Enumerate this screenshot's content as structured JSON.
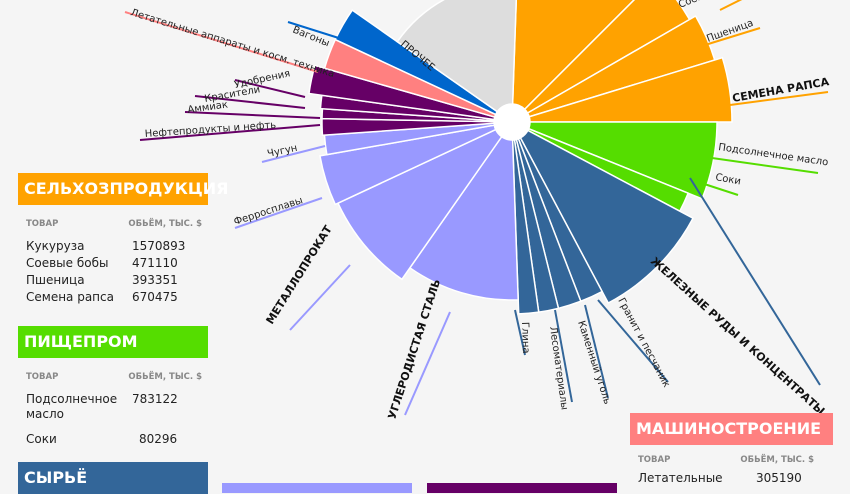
{
  "colors": {
    "agri": "#FFA200",
    "food": "#55DD00",
    "raw": "#336699",
    "metal": "#9999FF",
    "chem": "#660066",
    "machine": "#FF8080",
    "wagon": "#0066CC",
    "other": "#DDDDDD"
  },
  "panels": {
    "agri": {
      "title": "СЕЛЬХОЗПРОДУКЦИЯ",
      "col1": "ТОВАР",
      "col2": "ОБЬЁМ, ТЫС. $",
      "rows": [
        {
          "name": "Кукуруза",
          "value": "1570893"
        },
        {
          "name": "Соевые бобы",
          "value": "471110"
        },
        {
          "name": "Пшеница",
          "value": "393351"
        },
        {
          "name": "Семена рапса",
          "value": "670475"
        }
      ]
    },
    "food": {
      "title": "ПИЩЕПРОМ",
      "col1": "ТОВАР",
      "col2": "ОБЬЁМ, ТЫС. $",
      "rows": [
        {
          "name": "Подсолнечное масло",
          "value": "783122"
        },
        {
          "name": "Соки",
          "value": "80296"
        }
      ]
    },
    "raw": {
      "title": "СЫРЬЁ"
    },
    "machine": {
      "title": "МАШИНОСТРОЕНИЕ",
      "col1": "ТОВАР",
      "col2": "ОБЬЁМ, ТЫС. $",
      "rows": [
        {
          "name": "Летательные",
          "value": "305190"
        }
      ]
    }
  },
  "chart_data": {
    "type": "radial-bar",
    "slices": [
      {
        "label": "Кукуруза",
        "group": "agri",
        "value": 1570893
      },
      {
        "label": "Соевые бобы",
        "group": "agri",
        "value": 471110
      },
      {
        "label": "Пшеница",
        "group": "agri",
        "value": 393351
      },
      {
        "label": "СЕМЕНА РАПСА",
        "group": "agri",
        "value": 670475
      },
      {
        "label": "Подсолнечное масло",
        "group": "food",
        "value": 783122
      },
      {
        "label": "Соки",
        "group": "food",
        "value": 80296
      },
      {
        "label": "ЖЕЛЕЗНЫЕ РУДЫ И КОНЦЕНТРАТЫ",
        "group": "raw"
      },
      {
        "label": "Гранит и песчаник",
        "group": "raw"
      },
      {
        "label": "Каменный уголь",
        "group": "raw"
      },
      {
        "label": "Лесоматериалы",
        "group": "raw"
      },
      {
        "label": "Глина",
        "group": "raw"
      },
      {
        "label": "УГЛЕРОДИСТАЯ СТАЛЬ",
        "group": "metal"
      },
      {
        "label": "МЕТАЛЛОПРОКАТ",
        "group": "metal"
      },
      {
        "label": "Ферросплавы",
        "group": "metal"
      },
      {
        "label": "Чугун",
        "group": "metal"
      },
      {
        "label": "Нефтепродукты и нефть",
        "group": "chem"
      },
      {
        "label": "Аммиак",
        "group": "chem"
      },
      {
        "label": "Красители",
        "group": "chem"
      },
      {
        "label": "Удобрения",
        "group": "chem"
      },
      {
        "label": "Летательные аппараты и косм. техника",
        "group": "machine",
        "value": 305190
      },
      {
        "label": "Вагоны",
        "group": "wagon"
      },
      {
        "label": "ПРОЧЕЕ",
        "group": "other"
      }
    ]
  }
}
